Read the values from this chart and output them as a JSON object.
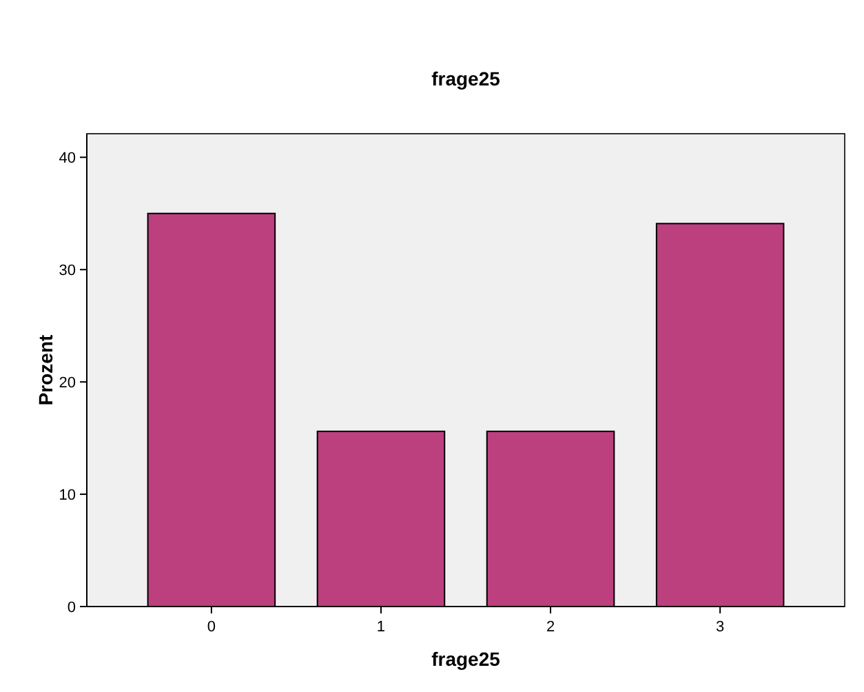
{
  "chart_data": {
    "type": "bar",
    "title": "frage25",
    "xlabel": "frage25",
    "ylabel": "Prozent",
    "categories": [
      "0",
      "1",
      "2",
      "3"
    ],
    "values": [
      35,
      15.6,
      15.6,
      34.1
    ],
    "color": "#bc3f7e",
    "ylim": [
      0,
      42.1
    ],
    "yticks": [
      0,
      10,
      20,
      30,
      40
    ],
    "grid": false
  }
}
